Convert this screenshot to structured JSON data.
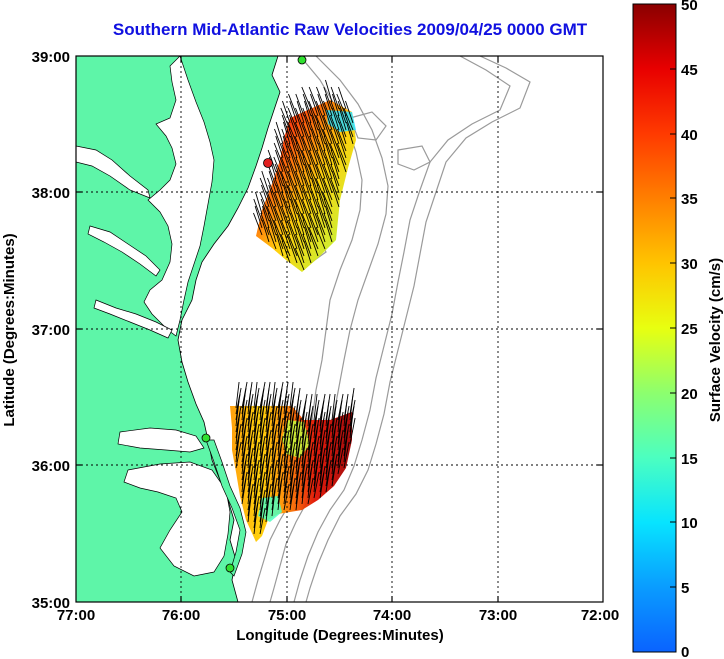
{
  "title": "Southern Mid-Atlantic Raw Velocities 2009/04/25 0000 GMT",
  "x_axis": {
    "label": "Longitude (Degrees:Minutes)",
    "ticks": [
      "77:00",
      "76:00",
      "75:00",
      "74:00",
      "73:00",
      "72:00"
    ]
  },
  "y_axis": {
    "label": "Latitude (Degrees:Minutes)",
    "ticks": [
      "39:00",
      "38:00",
      "37:00",
      "36:00",
      "35:00"
    ]
  },
  "colorbar": {
    "label": "Surface Velocity (cm/s)",
    "ticks": [
      "50",
      "45",
      "40",
      "35",
      "30",
      "25",
      "20",
      "15",
      "10",
      "5",
      "0"
    ],
    "min": 0,
    "max": 50
  },
  "colors": {
    "land": "#5ef5a8",
    "title": "#1010e0",
    "bathymetry": "#9a9a9a",
    "grid": "#000000"
  },
  "stations": [
    {
      "color": "#e02020"
    },
    {
      "color": "#30e030"
    },
    {
      "color": "#30e030"
    },
    {
      "color": "#30e030"
    }
  ]
}
